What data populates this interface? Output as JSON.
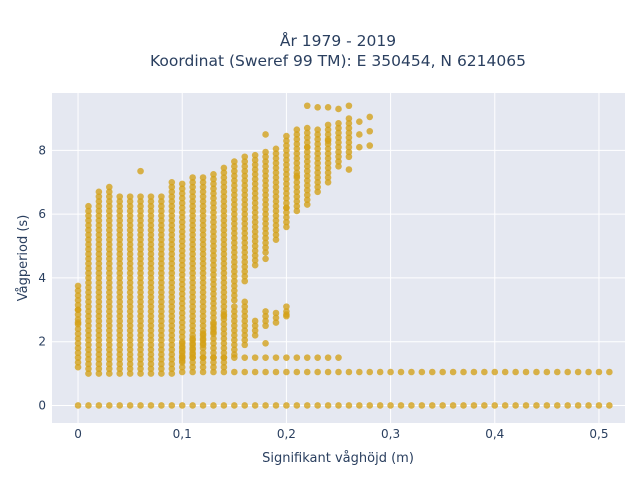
{
  "chart_data": {
    "type": "scatter",
    "title_line1": "År 1979 - 2019",
    "title_line2": "Koordinat (Sweref 99 TM): E 350454, N 6214065",
    "xlabel": "Signifikant våghöjd (m)",
    "ylabel": "Vågperiod (s)",
    "xlim": [
      -0.025,
      0.525
    ],
    "ylim": [
      -0.55,
      9.8
    ],
    "x_ticks": [
      0,
      0.1,
      0.2,
      0.3,
      0.4,
      0.5
    ],
    "x_tick_labels": [
      "0",
      "0,1",
      "0,2",
      "0,3",
      "0,4",
      "0,5"
    ],
    "y_ticks": [
      0,
      2,
      4,
      6,
      8
    ],
    "y_tick_labels": [
      "0",
      "2",
      "4",
      "6",
      "8"
    ],
    "grid": true,
    "legend": false,
    "colors": {
      "marker": "#D4A017",
      "plot_bg": "#E5E8F1",
      "grid": "#ffffff",
      "text": "#2a3f5f"
    },
    "x_step": 0.01,
    "series": [
      {
        "name": "",
        "bands": [
          {
            "x_from": 0.0,
            "x_to": 0.51,
            "y": 0.0
          },
          {
            "x_from": 0.1,
            "x_to": 0.51,
            "y": 1.05
          },
          {
            "x_from": 0.1,
            "x_to": 0.25,
            "y": 1.5
          }
        ],
        "columns": [
          {
            "x": 0.0,
            "y_min": 1.2,
            "y_max": 3.75
          },
          {
            "x": 0.01,
            "y_min": 1.0,
            "y_max": 6.3
          },
          {
            "x": 0.02,
            "y_min": 1.0,
            "y_max": 6.7
          },
          {
            "x": 0.03,
            "y_min": 1.0,
            "y_max": 6.8
          },
          {
            "x": 0.04,
            "y_min": 1.0,
            "y_max": 6.5
          },
          {
            "x": 0.05,
            "y_min": 1.0,
            "y_max": 6.6
          },
          {
            "x": 0.06,
            "y_min": 1.0,
            "y_max": 6.5
          },
          {
            "x": 0.07,
            "y_min": 1.0,
            "y_max": 6.6
          },
          {
            "x": 0.08,
            "y_min": 1.0,
            "y_max": 6.6
          },
          {
            "x": 0.09,
            "y_min": 1.0,
            "y_max": 7.0
          },
          {
            "x": 0.1,
            "y_min": 1.4,
            "y_max": 7.0
          },
          {
            "x": 0.11,
            "y_min": 1.6,
            "y_max": 7.1
          },
          {
            "x": 0.12,
            "y_min": 1.9,
            "y_max": 7.2
          },
          {
            "x": 0.13,
            "y_min": 2.3,
            "y_max": 7.3
          },
          {
            "x": 0.14,
            "y_min": 2.8,
            "y_max": 7.5
          },
          {
            "x": 0.15,
            "y_min": 3.3,
            "y_max": 7.7
          },
          {
            "x": 0.16,
            "y_min": 3.9,
            "y_max": 7.8
          },
          {
            "x": 0.17,
            "y_min": 4.4,
            "y_max": 7.9
          },
          {
            "x": 0.18,
            "y_min": 4.8,
            "y_max": 8.0
          },
          {
            "x": 0.19,
            "y_min": 5.2,
            "y_max": 8.1
          },
          {
            "x": 0.2,
            "y_min": 5.6,
            "y_max": 8.5
          },
          {
            "x": 0.21,
            "y_min": 6.1,
            "y_max": 8.6
          },
          {
            "x": 0.22,
            "y_min": 6.3,
            "y_max": 8.7
          },
          {
            "x": 0.23,
            "y_min": 6.7,
            "y_max": 8.7
          },
          {
            "x": 0.24,
            "y_min": 7.0,
            "y_max": 8.8
          },
          {
            "x": 0.25,
            "y_min": 7.5,
            "y_max": 8.9
          },
          {
            "x": 0.26,
            "y_min": 7.8,
            "y_max": 9.0
          }
        ],
        "low_columns": [
          {
            "x": 0.1,
            "y_min": 1.2,
            "y_max": 1.9
          },
          {
            "x": 0.11,
            "y_min": 1.2,
            "y_max": 2.1
          },
          {
            "x": 0.12,
            "y_min": 1.2,
            "y_max": 2.3
          },
          {
            "x": 0.13,
            "y_min": 1.2,
            "y_max": 2.6
          },
          {
            "x": 0.14,
            "y_min": 1.2,
            "y_max": 2.8
          },
          {
            "x": 0.15,
            "y_min": 1.6,
            "y_max": 3.1
          },
          {
            "x": 0.16,
            "y_min": 1.9,
            "y_max": 3.3
          },
          {
            "x": 0.17,
            "y_min": 2.2,
            "y_max": 2.7
          },
          {
            "x": 0.18,
            "y_min": 2.5,
            "y_max": 2.9
          },
          {
            "x": 0.19,
            "y_min": 2.6,
            "y_max": 2.9
          },
          {
            "x": 0.2,
            "y_min": 2.8,
            "y_max": 3.1
          }
        ],
        "points": [
          {
            "x": 0.06,
            "y": 7.35
          },
          {
            "x": 0.0,
            "y": 2.6
          },
          {
            "x": 0.0,
            "y": 3.0
          },
          {
            "x": 0.18,
            "y": 1.95
          },
          {
            "x": 0.18,
            "y": 4.6
          },
          {
            "x": 0.2,
            "y": 2.85
          },
          {
            "x": 0.22,
            "y": 9.4
          },
          {
            "x": 0.23,
            "y": 9.35
          },
          {
            "x": 0.24,
            "y": 9.35
          },
          {
            "x": 0.25,
            "y": 9.3
          },
          {
            "x": 0.26,
            "y": 9.4
          },
          {
            "x": 0.27,
            "y": 8.9
          },
          {
            "x": 0.27,
            "y": 8.5
          },
          {
            "x": 0.27,
            "y": 8.1
          },
          {
            "x": 0.28,
            "y": 9.05
          },
          {
            "x": 0.28,
            "y": 8.6
          },
          {
            "x": 0.28,
            "y": 8.15
          },
          {
            "x": 0.26,
            "y": 7.4
          },
          {
            "x": 0.18,
            "y": 8.5
          },
          {
            "x": 0.22,
            "y": 8.1
          },
          {
            "x": 0.24,
            "y": 8.3
          },
          {
            "x": 0.21,
            "y": 7.2
          },
          {
            "x": 0.2,
            "y": 6.2
          }
        ]
      }
    ]
  }
}
